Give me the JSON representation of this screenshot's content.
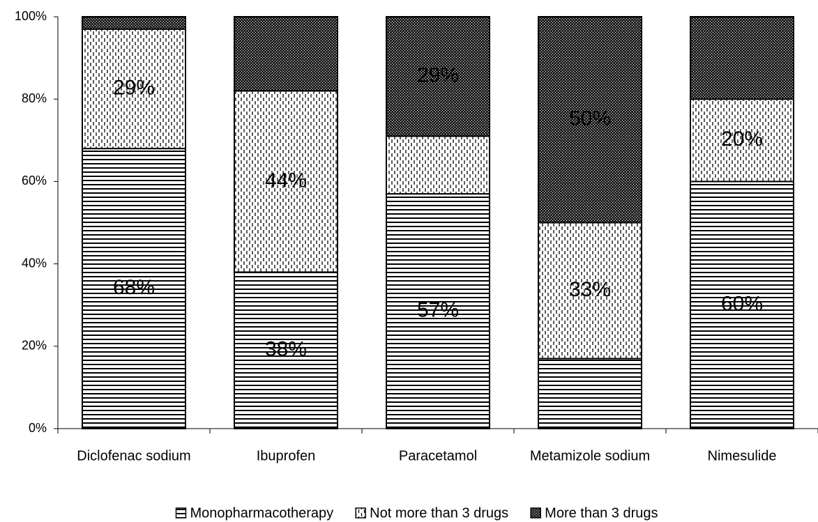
{
  "chart_data": {
    "type": "stacked_bar",
    "categories": [
      "Diclofenac sodium",
      "Ibuprofen",
      "Paracetamol",
      "Metamizole sodium",
      "Nimesulide"
    ],
    "series": [
      {
        "name": "Monopharmacotherapy",
        "pattern": "horizontal",
        "color": "#000000",
        "values": [
          68,
          38,
          57,
          17,
          60
        ],
        "value_labels": [
          "68%",
          "38%",
          "57%",
          null,
          "60%"
        ]
      },
      {
        "name": "Not more than 3 drugs",
        "pattern": "dashed",
        "color": "#000000",
        "values": [
          29,
          44,
          14,
          33,
          20
        ],
        "value_labels": [
          "29%",
          "44%",
          null,
          "33%",
          "20%"
        ]
      },
      {
        "name": "More than 3 drugs",
        "pattern": "dotted",
        "color": "#000000",
        "values": [
          3,
          18,
          29,
          50,
          20
        ],
        "value_labels": [
          null,
          null,
          "29%",
          "50%",
          null
        ]
      }
    ],
    "ylim": [
      0,
      100
    ],
    "yticks": [
      {
        "value": 0,
        "label": "0%"
      },
      {
        "value": 20,
        "label": "20%"
      },
      {
        "value": 40,
        "label": "40%"
      },
      {
        "value": 60,
        "label": "60%"
      },
      {
        "value": 80,
        "label": "80%"
      },
      {
        "value": 100,
        "label": "100%"
      }
    ],
    "legend": "bottom"
  }
}
